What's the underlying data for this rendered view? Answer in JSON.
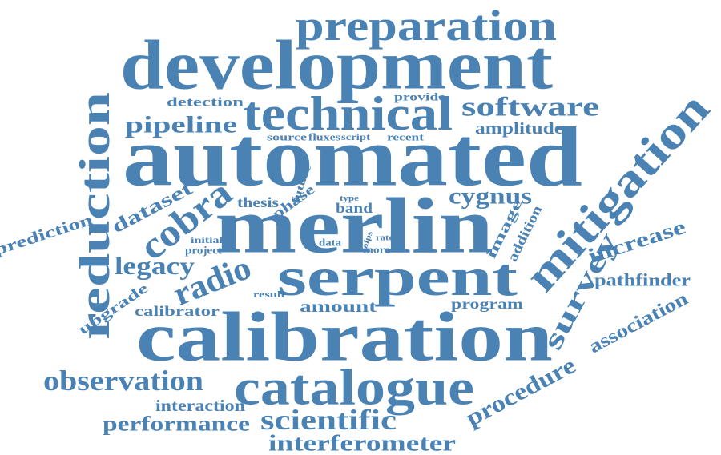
{
  "title": "",
  "colors": {
    "word": "#4a82b4",
    "background": "#ffffff"
  },
  "words": [
    {
      "text": "preparation"
    },
    {
      "text": "development"
    },
    {
      "text": "technical"
    },
    {
      "text": "software"
    },
    {
      "text": "detection"
    },
    {
      "text": "provide"
    },
    {
      "text": "pipeline"
    },
    {
      "text": "amplitude"
    },
    {
      "text": "source"
    },
    {
      "text": "fluxes"
    },
    {
      "text": "script"
    },
    {
      "text": "recent"
    },
    {
      "text": "automated"
    },
    {
      "text": "reduction"
    },
    {
      "text": "mitigation"
    },
    {
      "text": "future"
    },
    {
      "text": "thesis"
    },
    {
      "text": "phase"
    },
    {
      "text": "type"
    },
    {
      "text": "band"
    },
    {
      "text": "cygnus"
    },
    {
      "text": "dataset"
    },
    {
      "text": "cobra"
    },
    {
      "text": "merlin"
    },
    {
      "text": "prediction"
    },
    {
      "text": "initial"
    },
    {
      "text": "project"
    },
    {
      "text": "data"
    },
    {
      "text": "start"
    },
    {
      "text": "aips"
    },
    {
      "text": "rate"
    },
    {
      "text": "more"
    },
    {
      "text": "image"
    },
    {
      "text": "addition"
    },
    {
      "text": "increase"
    },
    {
      "text": "legacy"
    },
    {
      "text": "radio"
    },
    {
      "text": "serpent"
    },
    {
      "text": "survey"
    },
    {
      "text": "pathfinder"
    },
    {
      "text": "upgrade"
    },
    {
      "text": "result"
    },
    {
      "text": "amount"
    },
    {
      "text": "program"
    },
    {
      "text": "calibrator"
    },
    {
      "text": "association"
    },
    {
      "text": "calibration"
    },
    {
      "text": "observation"
    },
    {
      "text": "catalogue"
    },
    {
      "text": "procedure"
    },
    {
      "text": "interaction"
    },
    {
      "text": "performance"
    },
    {
      "text": "scientific"
    },
    {
      "text": "interferometer"
    }
  ]
}
